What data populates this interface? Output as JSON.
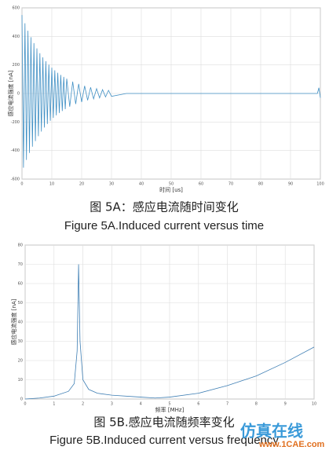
{
  "chart_data": [
    {
      "type": "line",
      "xlabel": "时间 [us]",
      "ylabel": "感应电流强度 [nA]",
      "caption_zh": "图 5A：感应电流随时间变化",
      "caption_en": "Figure 5A.Induced current versus time",
      "xlim": [
        0,
        100
      ],
      "xticks": [
        0,
        10,
        20,
        30,
        40,
        50,
        60,
        70,
        80,
        90,
        100
      ],
      "ylim": [
        -600,
        600
      ],
      "yticks": [
        -600,
        -400,
        -200,
        0,
        200,
        400,
        600
      ],
      "grid": true,
      "x": [
        0,
        0.5,
        1,
        1.5,
        2,
        2.5,
        3,
        3.5,
        4,
        4.5,
        5,
        5.5,
        6,
        6.5,
        7,
        7.5,
        8,
        8.5,
        9,
        9.5,
        10,
        10.5,
        11,
        11.5,
        12,
        12.5,
        13,
        13.5,
        14,
        14.5,
        15,
        16,
        17,
        18,
        19,
        20,
        21,
        22,
        23,
        24,
        25,
        26,
        27,
        28,
        29,
        30,
        35,
        99,
        99.5,
        100
      ],
      "series": [
        {
          "color": "#3f8fc4",
          "values": [
            550,
            -520,
            492,
            -466,
            440,
            -417,
            394,
            -373,
            353,
            -334,
            316,
            -299,
            282,
            -267,
            253,
            -239,
            226,
            -214,
            202,
            -191,
            181,
            -171,
            162,
            -153,
            145,
            -137,
            130,
            -123,
            116,
            -110,
            104,
            -93,
            83,
            -74,
            67,
            -60,
            53,
            -48,
            43,
            -38,
            34,
            -31,
            27,
            -24,
            22,
            -20,
            0,
            0,
            40,
            -30
          ]
        }
      ]
    },
    {
      "type": "line",
      "xlabel": "频率 [MHz]",
      "ylabel": "感应电流强度 [nA]",
      "caption_zh": "图 5B.感应电流随频率变化",
      "caption_en": "Figure 5B.Induced current versus frequency",
      "xlim": [
        0,
        10
      ],
      "xticks": [
        0,
        1,
        2,
        3,
        4,
        5,
        6,
        7,
        8,
        9,
        10
      ],
      "ylim": [
        0,
        80
      ],
      "yticks": [
        0,
        10,
        20,
        30,
        40,
        50,
        60,
        70,
        80
      ],
      "grid": true,
      "x": [
        0,
        0.5,
        1,
        1.5,
        1.7,
        1.8,
        1.85,
        1.9,
        2,
        2.2,
        2.5,
        3,
        4,
        4.5,
        5,
        6,
        7,
        8,
        9,
        10
      ],
      "series": [
        {
          "color": "#3f7fb4",
          "values": [
            0,
            0.5,
            1.5,
            4,
            8,
            25,
            70,
            30,
            10,
            5,
            3,
            2,
            1,
            0.5,
            1,
            3,
            7,
            12,
            19,
            27
          ]
        }
      ]
    }
  ],
  "watermark": {
    "text": "仿真在线",
    "url": "www.1CAE.com"
  }
}
